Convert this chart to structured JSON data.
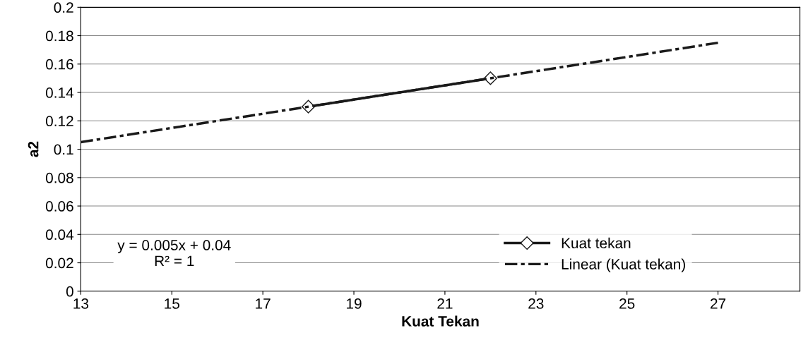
{
  "chart_data": {
    "type": "line",
    "xlabel": "Kuat Tekan",
    "ylabel": "a2",
    "series": [
      {
        "name": "Kuat tekan",
        "x": [
          18,
          22
        ],
        "values": [
          0.13,
          0.15
        ],
        "color": "#1a1a1a",
        "marker": "diamond",
        "line_style": "solid"
      },
      {
        "name": "Linear (Kuat tekan)",
        "x": [
          13,
          27
        ],
        "values": [
          0.105,
          0.175
        ],
        "color": "#1a1a1a",
        "marker": "none",
        "line_style": "dashed"
      }
    ],
    "annotations": [
      "y = 0.005x + 0.04\nR² = 1"
    ],
    "xlim": [
      13,
      28.8
    ],
    "xticks": [
      13,
      15,
      17,
      19,
      21,
      23,
      25,
      27
    ],
    "ylim": [
      0,
      0.2
    ],
    "yticks": [
      0,
      0.02,
      0.04,
      0.06,
      0.08,
      0.1,
      0.12,
      0.14,
      0.16,
      0.18,
      0.2
    ],
    "grid": "y",
    "legend": "bottom right"
  }
}
